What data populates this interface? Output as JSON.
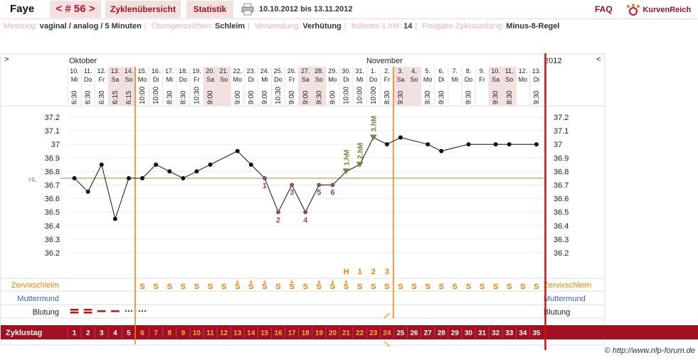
{
  "header": {
    "name": "Faye",
    "cycle_nav": "< # 56 >",
    "tab_overview": "Zyklenübersicht",
    "tab_stats": "Statistik",
    "date_range": "10.10.2012 bis 13.11.2012",
    "faq": "FAQ",
    "brand": "KurvenReich"
  },
  "info": {
    "messung_label": "Messung:",
    "messung_value": "vaginal / analog / 5 Minuten",
    "oestrogen_label": "Östrogenzeichen:",
    "oestrogen_value": "Schleim",
    "verwendung_label": "Verwendung:",
    "verwendung_value": "Verhütung",
    "hm_label": "früheste 1.hM:",
    "hm_value": "14",
    "freigabe_label": "Freigabe Zyklusanfang:",
    "freigabe_value": "Minus-8-Regel"
  },
  "chart": {
    "left_arrow": ">",
    "right_arrow": "<",
    "month_oct": "Oktober",
    "month_nov": "November",
    "year": "2012",
    "hl_label": "HL",
    "hl_value": 36.75,
    "y_ticks": [
      "37.2",
      "37.1",
      "37",
      "36.9",
      "36.8",
      "36.7",
      "36.6",
      "36.5",
      "36.4",
      "36.3",
      "36.2"
    ],
    "y_tick_values": [
      37.2,
      37.1,
      37.0,
      36.9,
      36.8,
      36.7,
      36.6,
      36.5,
      36.4,
      36.3,
      36.2
    ],
    "row_labels": {
      "schleim": "Zervixschleim",
      "muttermund": "Muttermund",
      "blutung": "Blutung",
      "zyklustag": "Zyklustag"
    },
    "pink_color": "#f3e1e1",
    "accent": "#a01020",
    "orange": "#f07f00"
  },
  "chart_data": {
    "type": "line",
    "days": [
      {
        "day": "10.",
        "wd": "Mi",
        "time": "6:30",
        "t": 36.75,
        "pink": false
      },
      {
        "day": "11.",
        "wd": "Do",
        "time": "6:30",
        "t": 36.65,
        "pink": false
      },
      {
        "day": "12.",
        "wd": "Fr",
        "time": "6:30",
        "t": 36.85,
        "pink": false
      },
      {
        "day": "13.",
        "wd": "Sa",
        "time": "6:15",
        "t": 36.45,
        "pink": true
      },
      {
        "day": "14.",
        "wd": "So",
        "time": "6:15",
        "t": 36.75,
        "pink": true
      },
      {
        "day": "15.",
        "wd": "Mo",
        "time": "10:00",
        "t": 36.75,
        "pink": false
      },
      {
        "day": "16.",
        "wd": "Di",
        "time": "10:00",
        "t": 36.85,
        "pink": false
      },
      {
        "day": "17.",
        "wd": "Mi",
        "time": "8:30",
        "t": 36.8,
        "pink": false
      },
      {
        "day": "18.",
        "wd": "Do",
        "time": "8:30",
        "t": 36.75,
        "pink": false
      },
      {
        "day": "19.",
        "wd": "Fr",
        "time": "10:30",
        "t": 36.8,
        "pink": false
      },
      {
        "day": "20.",
        "wd": "Sa",
        "time": "9:00",
        "t": 36.85,
        "pink": true
      },
      {
        "day": "21.",
        "wd": "So",
        "time": "",
        "t": null,
        "pink": true
      },
      {
        "day": "22.",
        "wd": "Mo",
        "time": "9:00",
        "t": 36.95,
        "pink": false
      },
      {
        "day": "23.",
        "wd": "Di",
        "time": "9:00",
        "t": 36.85,
        "pink": false
      },
      {
        "day": "24.",
        "wd": "Mi",
        "time": "9:00",
        "t": 36.75,
        "pink": false
      },
      {
        "day": "25.",
        "wd": "Do",
        "time": "10:30",
        "t": 36.5,
        "pink": false
      },
      {
        "day": "26.",
        "wd": "Fr",
        "time": "9:00",
        "t": 36.7,
        "pink": false
      },
      {
        "day": "27.",
        "wd": "Sa",
        "time": "9:00",
        "t": 36.5,
        "pink": true
      },
      {
        "day": "28.",
        "wd": "So",
        "time": "9:30",
        "t": 36.7,
        "pink": true
      },
      {
        "day": "29.",
        "wd": "Mo",
        "time": "9:00",
        "t": 36.7,
        "pink": false
      },
      {
        "day": "30.",
        "wd": "Di",
        "time": "10:00",
        "t": 36.8,
        "pink": false
      },
      {
        "day": "31.",
        "wd": "Mi",
        "time": "10:00",
        "t": 36.85,
        "pink": false
      },
      {
        "day": "1.",
        "wd": "Do",
        "time": "10:00",
        "t": 37.05,
        "pink": false
      },
      {
        "day": "2.",
        "wd": "Fr",
        "time": "8:30",
        "t": 37.0,
        "pink": false
      },
      {
        "day": "3.",
        "wd": "Sa",
        "time": "9:30",
        "t": 37.05,
        "pink": true
      },
      {
        "day": "4.",
        "wd": "So",
        "time": "",
        "t": null,
        "pink": true
      },
      {
        "day": "5.",
        "wd": "Mo",
        "time": "9:30",
        "t": 37.0,
        "pink": false
      },
      {
        "day": "6.",
        "wd": "Di",
        "time": "9:30",
        "t": 36.95,
        "pink": false
      },
      {
        "day": "7.",
        "wd": "Mi",
        "time": "",
        "t": null,
        "pink": false
      },
      {
        "day": "8.",
        "wd": "Do",
        "time": "9:30",
        "t": 37.0,
        "pink": false
      },
      {
        "day": "9.",
        "wd": "Fr",
        "time": "",
        "t": null,
        "pink": false
      },
      {
        "day": "10.",
        "wd": "Sa",
        "time": "9:30",
        "t": 37.0,
        "pink": true
      },
      {
        "day": "11.",
        "wd": "So",
        "time": "8:30",
        "t": 37.0,
        "pink": true
      },
      {
        "day": "12.",
        "wd": "Mo",
        "time": "",
        "t": null,
        "pink": false
      },
      {
        "day": "13.",
        "wd": "Di",
        "time": "9:30",
        "t": 37.0,
        "pink": false
      }
    ],
    "low_labels": [
      {
        "index": 14,
        "label": "1"
      },
      {
        "index": 15,
        "label": "2"
      },
      {
        "index": 16,
        "label": "3"
      },
      {
        "index": 17,
        "label": "4"
      },
      {
        "index": 18,
        "label": "5"
      },
      {
        "index": 19,
        "label": "6"
      }
    ],
    "high_labels": [
      {
        "index": 20,
        "label": "1.hM"
      },
      {
        "index": 21,
        "label": "2.hM"
      },
      {
        "index": 22,
        "label": "3.hM"
      }
    ],
    "peak_labels": [
      {
        "index": 20,
        "label": "H"
      },
      {
        "index": 21,
        "label": "1"
      },
      {
        "index": 22,
        "label": "2"
      },
      {
        "index": 23,
        "label": "3"
      }
    ],
    "schleim": [
      "",
      "",
      "",
      "",
      "",
      "S",
      "S",
      "S",
      "S",
      "S",
      "S",
      "S",
      "S",
      "S",
      "S",
      "S",
      "S",
      "S",
      "S",
      "S",
      "S",
      "S",
      "S",
      "S",
      "S",
      "S",
      "S",
      "S",
      "S",
      "S",
      "S",
      "S",
      "S",
      "S",
      "S"
    ],
    "schleim_plus": [
      12,
      13,
      14,
      16,
      18,
      19,
      20
    ],
    "blutung": [
      "heavy",
      "heavy",
      "medium",
      "medium",
      "light",
      "light",
      "",
      "",
      "",
      "",
      "",
      "",
      "",
      "",
      "",
      "",
      "",
      "",
      "",
      "",
      "",
      "",
      "",
      "",
      "",
      "",
      "",
      "",
      "",
      "",
      "",
      "",
      "",
      "",
      ""
    ],
    "zyklustage": [
      "1",
      "2",
      "3",
      "4",
      "5",
      "6",
      "7",
      "8",
      "9",
      "10",
      "11",
      "12",
      "13",
      "14",
      "15",
      "16",
      "17",
      "18",
      "19",
      "20",
      "21",
      "22",
      "23",
      "24",
      "25",
      "26",
      "27",
      "28",
      "29",
      "30",
      "31",
      "32",
      "33",
      "34",
      "35"
    ],
    "zyklustag_orange_until": 23,
    "marked_day": 23,
    "y_min": 36.1,
    "y_max": 37.3
  }
}
